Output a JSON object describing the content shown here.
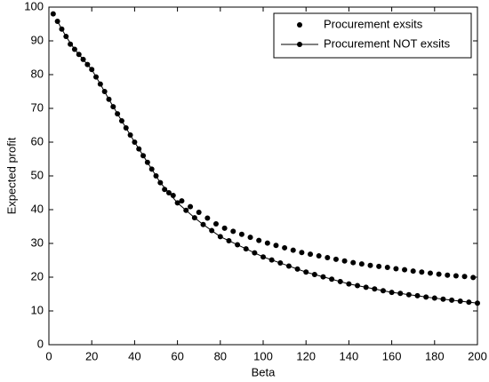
{
  "chart_data": {
    "type": "line",
    "x_label": "Beta",
    "y_label": "Expected profit",
    "xlim": [
      0,
      200
    ],
    "ylim": [
      0,
      100
    ],
    "xticks": [
      0,
      20,
      40,
      60,
      80,
      100,
      120,
      140,
      160,
      180,
      200
    ],
    "yticks": [
      0,
      10,
      20,
      30,
      40,
      50,
      60,
      70,
      80,
      90,
      100
    ],
    "legend_position": "upper right",
    "series": [
      {
        "name": "Procurement exsits",
        "color": "#000000",
        "line_style": "none",
        "x": [
          2,
          6,
          10,
          14,
          18,
          22,
          26,
          30,
          34,
          38,
          42,
          46,
          50,
          54,
          58,
          62,
          66,
          70,
          74,
          78,
          82,
          86,
          90,
          94,
          98,
          102,
          106,
          110,
          114,
          118,
          122,
          126,
          130,
          134,
          138,
          142,
          146,
          150,
          154,
          158,
          162,
          166,
          170,
          174,
          178,
          182,
          186,
          190,
          194,
          198
        ],
        "values": [
          98,
          93.5,
          89,
          86,
          83,
          79.3,
          75,
          70.5,
          66.3,
          62.1,
          58,
          54,
          50,
          46,
          44.2,
          42.6,
          40.9,
          39.2,
          37.5,
          35.8,
          34.5,
          33.6,
          32.7,
          31.8,
          30.9,
          30.1,
          29.4,
          28.7,
          28.0,
          27.3,
          26.8,
          26.3,
          25.8,
          25.3,
          24.8,
          24.3,
          23.9,
          23.5,
          23.2,
          22.9,
          22.5,
          22.2,
          21.8,
          21.5,
          21.2,
          20.9,
          20.6,
          20.4,
          20.2,
          19.9
        ]
      },
      {
        "name": "Procurement NOT exsits",
        "color": "#000000",
        "line_style": "solid",
        "x": [
          4,
          8,
          12,
          16,
          20,
          24,
          28,
          32,
          36,
          40,
          44,
          48,
          52,
          56,
          60,
          64,
          68,
          72,
          76,
          80,
          84,
          88,
          92,
          96,
          100,
          104,
          108,
          112,
          116,
          120,
          124,
          128,
          132,
          136,
          140,
          144,
          148,
          152,
          156,
          160,
          164,
          168,
          172,
          176,
          180,
          184,
          188,
          192,
          196,
          200
        ],
        "values": [
          95.8,
          91.3,
          87.5,
          84.5,
          81.5,
          77.2,
          72.7,
          68.4,
          64.2,
          60,
          56,
          52,
          48,
          45,
          42,
          39.8,
          37.6,
          35.6,
          33.8,
          32,
          30.8,
          29.6,
          28.4,
          27.2,
          26,
          25.1,
          24.2,
          23.3,
          22.4,
          21.5,
          20.8,
          20.1,
          19.4,
          18.7,
          18,
          17.5,
          17,
          16.5,
          16,
          15.5,
          15.2,
          14.8,
          14.5,
          14.1,
          13.8,
          13.5,
          13.2,
          12.9,
          12.6,
          12.3
        ]
      }
    ]
  }
}
